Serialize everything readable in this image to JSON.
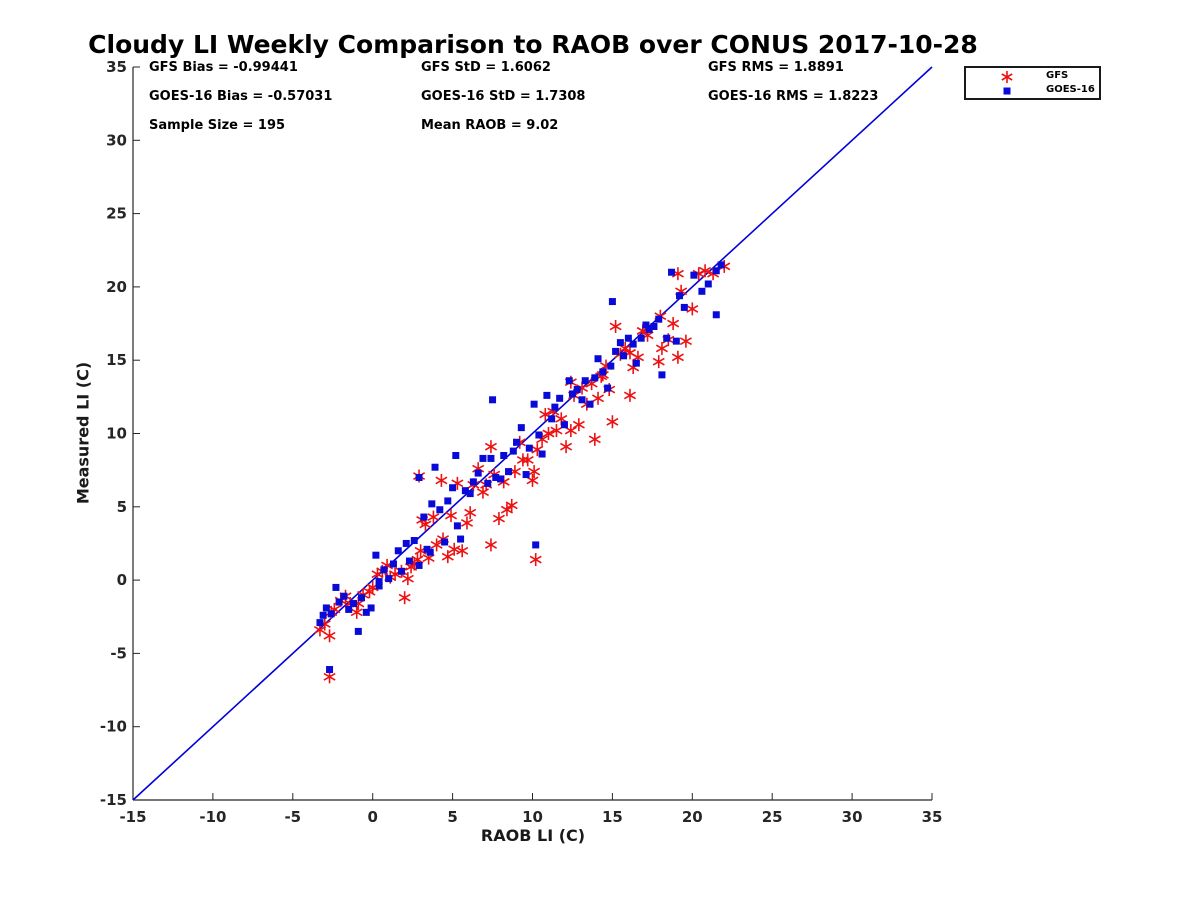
{
  "chart_data": {
    "type": "scatter",
    "title": "Cloudy LI Weekly Comparison to RAOB over CONUS 2017-10-28",
    "xlabel": "RAOB LI (C)",
    "ylabel": "Measured LI (C)",
    "xlim": [
      -15,
      35
    ],
    "ylim": [
      -15,
      35
    ],
    "xticks": [
      "-15",
      "-10",
      "-5",
      "0",
      "5",
      "10",
      "15",
      "20",
      "25",
      "30",
      "35"
    ],
    "yticks": [
      "-15",
      "-10",
      "-5",
      "0",
      "5",
      "10",
      "15",
      "20",
      "25",
      "30",
      "35"
    ],
    "grid": false,
    "legend_position": "outside top-right",
    "reference_line": {
      "from": [
        -15,
        -15
      ],
      "to": [
        35,
        35
      ],
      "color": "#0000dd"
    },
    "stats": {
      "gfs_bias": "GFS Bias = -0.99441",
      "gfs_std": "GFS StD = 1.6062",
      "gfs_rms": "GFS RMS = 1.8891",
      "goes_bias": "GOES-16 Bias = -0.57031",
      "goes_std": "GOES-16 StD = 1.7308",
      "goes_rms": "GOES-16 RMS = 1.8223",
      "sample_size": "Sample Size = 195",
      "mean_raob": "Mean RAOB = 9.02"
    },
    "series": [
      {
        "name": "GFS",
        "marker": "asterisk",
        "color": "#ee1111",
        "x": [
          -3.3,
          -3.0,
          -2.7,
          -2.6,
          -2.4,
          -2.0,
          -1.7,
          -1.4,
          -1.0,
          -0.9,
          -0.6,
          -0.2,
          0.0,
          0.3,
          0.6,
          0.9,
          1.1,
          1.4,
          1.8,
          2.0,
          2.2,
          2.4,
          2.6,
          2.8,
          3.0,
          3.1,
          3.3,
          3.5,
          3.8,
          4.0,
          4.4,
          4.7,
          4.9,
          5.1,
          5.3,
          5.6,
          5.9,
          6.1,
          6.3,
          6.6,
          6.9,
          7.1,
          7.4,
          7.6,
          7.9,
          8.2,
          8.4,
          8.7,
          8.9,
          9.2,
          9.4,
          9.7,
          10.0,
          10.1,
          10.3,
          10.6,
          10.8,
          11.0,
          11.3,
          11.5,
          11.8,
          12.1,
          12.4,
          12.6,
          12.9,
          13.1,
          13.4,
          13.7,
          13.9,
          14.1,
          14.3,
          14.6,
          14.8,
          15.0,
          15.2,
          15.5,
          15.8,
          16.1,
          16.3,
          16.6,
          16.9,
          17.2,
          17.9,
          18.1,
          18.5,
          18.8,
          19.1,
          19.3,
          19.6,
          20.0,
          20.4,
          20.8,
          21.3,
          22.0,
          -2.7,
          2.9,
          4.3,
          7.4,
          10.2,
          16.1,
          19.1,
          12.4,
          14.4,
          18.0
        ],
        "y": [
          -3.4,
          -3.0,
          -3.8,
          -2.2,
          -2.0,
          -1.4,
          -1.1,
          -1.6,
          -2.2,
          -1.6,
          -1.0,
          -0.8,
          -0.5,
          0.4,
          0.6,
          1.0,
          0.2,
          0.4,
          0.6,
          -1.2,
          0.1,
          0.9,
          1.1,
          1.4,
          2.0,
          4.1,
          3.8,
          1.5,
          4.3,
          2.4,
          2.8,
          1.6,
          4.4,
          2.1,
          6.6,
          2.0,
          3.9,
          4.6,
          6.5,
          7.6,
          6.0,
          6.5,
          9.1,
          7.2,
          4.2,
          6.7,
          4.8,
          5.1,
          7.4,
          9.4,
          8.2,
          8.2,
          6.8,
          7.4,
          8.9,
          9.6,
          11.3,
          10.0,
          11.5,
          10.2,
          11.0,
          9.1,
          10.2,
          12.6,
          10.6,
          13.1,
          12.0,
          13.4,
          9.6,
          12.4,
          13.9,
          14.6,
          13.0,
          10.8,
          17.3,
          15.4,
          15.8,
          15.5,
          14.5,
          15.2,
          17.0,
          16.7,
          14.9,
          15.8,
          16.4,
          17.5,
          15.2,
          19.7,
          16.3,
          18.5,
          20.9,
          21.1,
          20.9,
          21.4,
          -6.6,
          7.1,
          6.8,
          2.4,
          1.4,
          12.6,
          20.9,
          13.5,
          14.0,
          18.0
        ]
      },
      {
        "name": "GOES-16",
        "marker": "square",
        "color": "#0a0ad8",
        "x": [
          -3.3,
          -3.1,
          -2.9,
          -2.6,
          -2.3,
          -2.1,
          -1.8,
          -1.5,
          -1.2,
          -0.9,
          -0.7,
          -0.4,
          -0.1,
          0.2,
          0.4,
          0.7,
          1.0,
          1.3,
          1.6,
          1.8,
          2.1,
          2.3,
          2.6,
          2.9,
          3.2,
          3.4,
          3.7,
          3.9,
          4.2,
          4.5,
          4.7,
          5.0,
          5.3,
          5.5,
          5.8,
          6.1,
          6.3,
          6.6,
          6.9,
          7.2,
          7.4,
          7.7,
          8.0,
          8.2,
          8.5,
          8.8,
          9.0,
          9.3,
          9.6,
          9.8,
          10.1,
          10.4,
          10.6,
          10.9,
          11.2,
          11.4,
          11.7,
          12.0,
          12.3,
          12.5,
          12.8,
          13.1,
          13.3,
          13.6,
          13.9,
          14.1,
          14.4,
          14.7,
          14.9,
          15.2,
          15.5,
          15.7,
          16.0,
          16.3,
          16.5,
          16.8,
          17.1,
          17.3,
          17.6,
          17.9,
          18.1,
          18.4,
          18.7,
          19.0,
          19.2,
          19.5,
          20.1,
          20.6,
          21.0,
          21.5,
          21.8,
          -2.7,
          3.6,
          5.2,
          7.5,
          10.2,
          15.0,
          21.5,
          0.4,
          2.9
        ],
        "y": [
          -2.9,
          -2.4,
          -1.9,
          -2.3,
          -0.5,
          -1.5,
          -1.1,
          -2.0,
          -1.6,
          -3.5,
          -1.2,
          -2.2,
          -1.9,
          1.7,
          -0.4,
          0.7,
          0.1,
          1.1,
          2.0,
          0.6,
          2.5,
          1.3,
          2.7,
          7.0,
          4.3,
          2.1,
          5.2,
          7.7,
          4.8,
          2.6,
          5.4,
          6.3,
          3.7,
          2.8,
          6.1,
          5.9,
          6.7,
          7.3,
          8.3,
          6.6,
          8.3,
          7.0,
          6.9,
          8.5,
          7.4,
          8.8,
          9.4,
          10.4,
          7.2,
          9.0,
          12.0,
          9.9,
          8.6,
          12.6,
          11.0,
          11.8,
          12.4,
          10.6,
          13.6,
          12.7,
          13.0,
          12.3,
          13.6,
          12.0,
          13.8,
          15.1,
          14.2,
          13.1,
          14.6,
          15.6,
          16.2,
          15.3,
          16.5,
          16.1,
          14.8,
          16.5,
          17.4,
          17.1,
          17.3,
          17.8,
          14.0,
          16.5,
          21.0,
          16.3,
          19.4,
          18.6,
          20.8,
          19.7,
          20.2,
          21.1,
          21.5,
          -6.1,
          1.9,
          8.5,
          12.3,
          2.4,
          19.0,
          18.1,
          -0.1,
          1.0
        ]
      }
    ]
  }
}
